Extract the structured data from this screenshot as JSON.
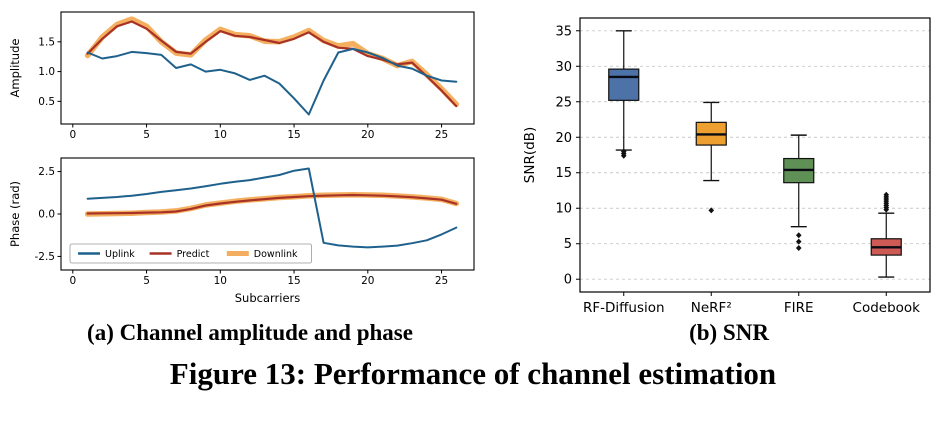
{
  "figure": {
    "caption_a": "(a) Channel amplitude and phase",
    "caption_b": "(b) SNR",
    "caption_main": "Figure 13: Performance of channel estimation"
  },
  "chart_data": [
    {
      "type": "line",
      "title": "",
      "xlabel": "",
      "ylabel": "Amplitude",
      "xlim": [
        -0.8,
        27.2
      ],
      "ylim": [
        0.12,
        2.0
      ],
      "xticks": [
        0,
        5,
        10,
        15,
        20,
        25
      ],
      "yticks": [
        0.5,
        1.0,
        1.5
      ],
      "legend_show": false,
      "x": [
        1,
        2,
        3,
        4,
        5,
        6,
        7,
        8,
        9,
        10,
        11,
        12,
        13,
        14,
        15,
        16,
        17,
        18,
        19,
        20,
        21,
        22,
        23,
        24,
        25,
        26
      ],
      "series": [
        {
          "name": "Uplink",
          "color": "#1f618d",
          "width": 2.0,
          "opacity": 1,
          "values": [
            1.32,
            1.22,
            1.26,
            1.33,
            1.31,
            1.28,
            1.06,
            1.12,
            1.0,
            1.03,
            0.97,
            0.86,
            0.93,
            0.8,
            0.55,
            0.28,
            0.85,
            1.32,
            1.38,
            1.32,
            1.23,
            1.1,
            1.05,
            0.93,
            0.85,
            0.83
          ]
        },
        {
          "name": "Predict",
          "color": "#a93226",
          "width": 2.2,
          "opacity": 1,
          "values": [
            1.3,
            1.55,
            1.76,
            1.84,
            1.72,
            1.52,
            1.33,
            1.3,
            1.5,
            1.68,
            1.6,
            1.58,
            1.53,
            1.48,
            1.55,
            1.66,
            1.5,
            1.4,
            1.38,
            1.26,
            1.2,
            1.12,
            1.15,
            0.92,
            0.68,
            0.42
          ]
        },
        {
          "name": "Downlink",
          "color": "#f3a64e",
          "width": 5.5,
          "opacity": 0.9,
          "values": [
            1.27,
            1.58,
            1.79,
            1.88,
            1.76,
            1.5,
            1.31,
            1.28,
            1.53,
            1.71,
            1.62,
            1.6,
            1.51,
            1.5,
            1.58,
            1.69,
            1.52,
            1.43,
            1.47,
            1.3,
            1.22,
            1.1,
            1.17,
            0.95,
            0.71,
            0.45
          ]
        }
      ]
    },
    {
      "type": "line",
      "title": "",
      "xlabel": "Subcarriers",
      "ylabel": "Phase (rad)",
      "xlim": [
        -0.8,
        27.2
      ],
      "ylim": [
        -3.3,
        3.3
      ],
      "xticks": [
        0,
        5,
        10,
        15,
        20,
        25
      ],
      "yticks": [
        -2.5,
        0.0,
        2.5
      ],
      "legend_show": true,
      "legend_position": "lower-left",
      "x": [
        1,
        2,
        3,
        4,
        5,
        6,
        7,
        8,
        9,
        10,
        11,
        12,
        13,
        14,
        15,
        16,
        17,
        18,
        19,
        20,
        21,
        22,
        23,
        24,
        25,
        26
      ],
      "series": [
        {
          "name": "Uplink",
          "color": "#1f618d",
          "width": 2.0,
          "opacity": 1,
          "values": [
            0.9,
            0.95,
            1.0,
            1.08,
            1.18,
            1.3,
            1.4,
            1.5,
            1.63,
            1.78,
            1.9,
            2.0,
            2.15,
            2.3,
            2.55,
            2.68,
            -1.7,
            -1.85,
            -1.92,
            -1.97,
            -1.92,
            -1.86,
            -1.72,
            -1.55,
            -1.2,
            -0.8
          ]
        },
        {
          "name": "Predict",
          "color": "#a93226",
          "width": 2.2,
          "opacity": 1,
          "values": [
            0.03,
            0.04,
            0.05,
            0.06,
            0.08,
            0.1,
            0.15,
            0.3,
            0.5,
            0.62,
            0.72,
            0.8,
            0.88,
            0.95,
            1.0,
            1.05,
            1.08,
            1.1,
            1.12,
            1.1,
            1.08,
            1.04,
            0.99,
            0.92,
            0.84,
            0.6
          ]
        },
        {
          "name": "Downlink",
          "color": "#f3a64e",
          "width": 5.5,
          "opacity": 0.9,
          "values": [
            0.0,
            0.02,
            0.03,
            0.05,
            0.09,
            0.12,
            0.18,
            0.33,
            0.53,
            0.64,
            0.75,
            0.83,
            0.9,
            0.97,
            1.02,
            1.07,
            1.1,
            1.12,
            1.14,
            1.12,
            1.1,
            1.06,
            1.01,
            0.94,
            0.86,
            0.62
          ]
        }
      ]
    },
    {
      "type": "box",
      "title": "",
      "xlabel": "",
      "ylabel": "SNR(dB)",
      "ylim": [
        -1.8,
        36.8
      ],
      "yticks": [
        0,
        5,
        10,
        15,
        20,
        25,
        30,
        35
      ],
      "grid": "horizontal-dashed",
      "categories": [
        "RF-Diffusion",
        "NeRF²",
        "FIRE",
        "Codebook"
      ],
      "boxes": [
        {
          "label": "RF-Diffusion",
          "color": "#4d72a8",
          "whisker_low": 18.2,
          "q1": 25.2,
          "median": 28.5,
          "q3": 29.6,
          "whisker_high": 35.0,
          "outliers": [
            17.4,
            17.7,
            18.0
          ]
        },
        {
          "label": "NeRF²",
          "color": "#ed9f2f",
          "whisker_low": 13.9,
          "q1": 18.9,
          "median": 20.4,
          "q3": 22.1,
          "whisker_high": 24.9,
          "outliers": [
            9.7
          ]
        },
        {
          "label": "FIRE",
          "color": "#5f9156",
          "whisker_low": 7.4,
          "q1": 13.6,
          "median": 15.4,
          "q3": 17.0,
          "whisker_high": 20.3,
          "outliers": [
            4.4,
            5.3,
            6.2
          ]
        },
        {
          "label": "Codebook",
          "color": "#cd5a55",
          "whisker_low": 0.3,
          "q1": 3.4,
          "median": 4.5,
          "q3": 5.7,
          "whisker_high": 9.3,
          "outliers": [
            9.8,
            10.1,
            10.4,
            10.7,
            11.0,
            11.3,
            11.6,
            11.9
          ]
        }
      ]
    }
  ]
}
